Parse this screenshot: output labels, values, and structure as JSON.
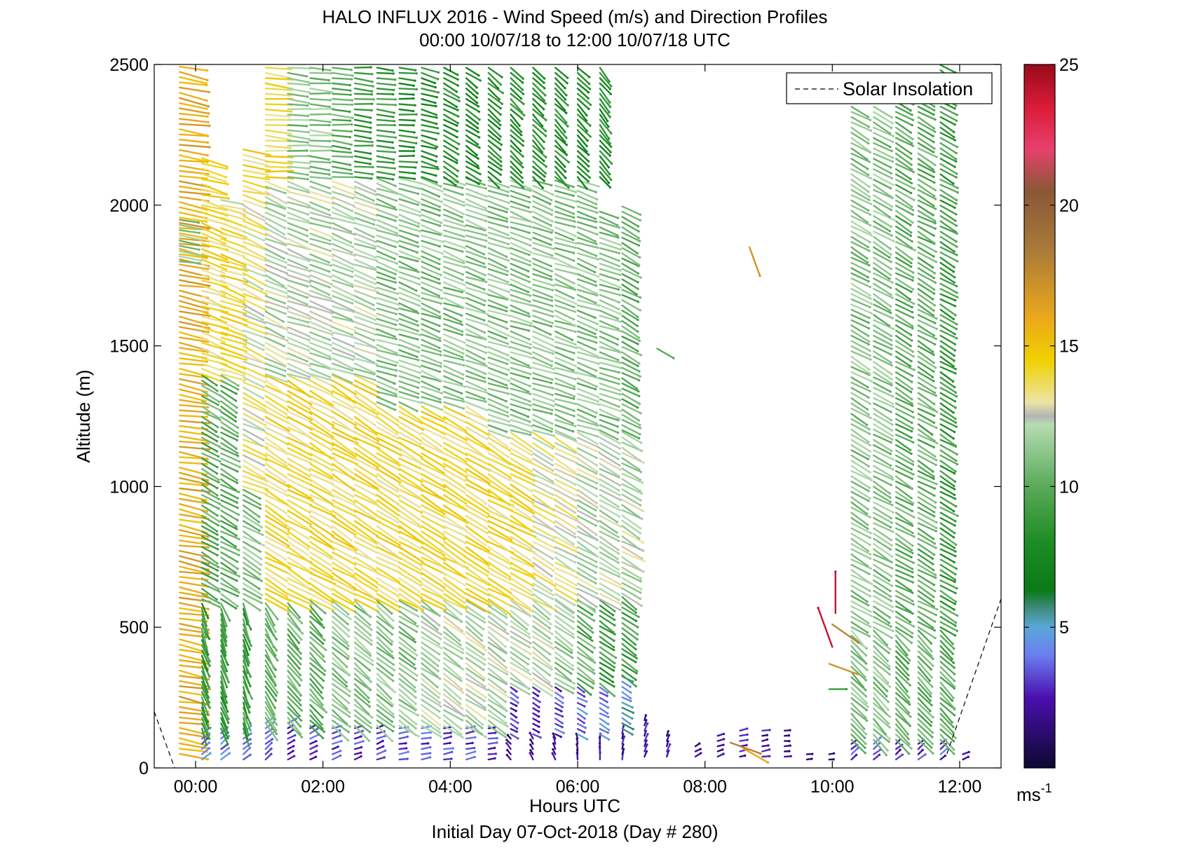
{
  "chart_data": {
    "type": "wind-vector-profile",
    "title": "HALO INFLUX 2016 - Wind Speed (m/s) and Direction Profiles",
    "subtitle": "00:00 10/07/18 to 12:00 10/07/18  UTC",
    "xlabel": "Hours UTC",
    "ylabel": "Altitude (m)",
    "footer": "Initial Day 07-Oct-2018 (Day # 280)",
    "x_unit": "hours",
    "xlim": [
      -0.65,
      12.65
    ],
    "ylim": [
      0,
      2500
    ],
    "x_ticks": [
      {
        "value": 0,
        "label": "00:00"
      },
      {
        "value": 2,
        "label": "02:00"
      },
      {
        "value": 4,
        "label": "04:00"
      },
      {
        "value": 6,
        "label": "06:00"
      },
      {
        "value": 8,
        "label": "08:00"
      },
      {
        "value": 10,
        "label": "10:00"
      },
      {
        "value": 12,
        "label": "12:00"
      }
    ],
    "y_ticks": [
      {
        "value": 0,
        "label": "0"
      },
      {
        "value": 500,
        "label": "500"
      },
      {
        "value": 1000,
        "label": "1000"
      },
      {
        "value": 1500,
        "label": "1500"
      },
      {
        "value": 2000,
        "label": "2000"
      },
      {
        "value": 2500,
        "label": "2500"
      }
    ],
    "legend": {
      "entries": [
        "Solar Insolation"
      ],
      "location": "top-right",
      "style": "dashed"
    },
    "colorbar": {
      "min": 0,
      "max": 25,
      "unit": "ms-1",
      "ticks": [
        {
          "value": 5,
          "label": "5"
        },
        {
          "value": 10,
          "label": "10"
        },
        {
          "value": 15,
          "label": "15"
        },
        {
          "value": 20,
          "label": "20"
        },
        {
          "value": 25,
          "label": "25"
        }
      ],
      "stops": [
        {
          "v": 0,
          "c": "#0d0830"
        },
        {
          "v": 2.5,
          "c": "#4b0fb0"
        },
        {
          "v": 4,
          "c": "#6a7ef0"
        },
        {
          "v": 5,
          "c": "#5aa8d8"
        },
        {
          "v": 5.7,
          "c": "#3d8a7a"
        },
        {
          "v": 6.3,
          "c": "#0a7a18"
        },
        {
          "v": 8,
          "c": "#1c8c22"
        },
        {
          "v": 10,
          "c": "#5aaa5a"
        },
        {
          "v": 12.2,
          "c": "#b6dcb2"
        },
        {
          "v": 12.5,
          "c": "#b4b4b4"
        },
        {
          "v": 13,
          "c": "#ece4a4"
        },
        {
          "v": 14.5,
          "c": "#f0d000"
        },
        {
          "v": 16,
          "c": "#eba81c"
        },
        {
          "v": 18.5,
          "c": "#a8783a"
        },
        {
          "v": 20.5,
          "c": "#8a5836"
        },
        {
          "v": 22,
          "c": "#e8406c"
        },
        {
          "v": 23.5,
          "c": "#d81c38"
        },
        {
          "v": 25,
          "c": "#9a0a1a"
        }
      ]
    },
    "solar_insolation": [
      {
        "x": [
          -0.65,
          -0.33
        ],
        "y": [
          200,
          0
        ]
      },
      {
        "x": [
          11.8,
          12.68
        ],
        "y": [
          50,
          620
        ]
      }
    ],
    "vector_scale": "arrow length proportional to speed",
    "profiles": [
      {
        "t": -0.25,
        "bands": [
          [
            50,
            2500,
            16,
            280
          ],
          [
            1800,
            1950,
            11,
            280
          ]
        ]
      },
      {
        "t": 0.1,
        "bands": [
          [
            30,
            140,
            4,
            230
          ],
          [
            140,
            600,
            9,
            340
          ],
          [
            600,
            1400,
            10,
            300
          ],
          [
            1400,
            2000,
            14,
            290
          ],
          [
            2000,
            2180,
            14,
            285
          ]
        ]
      },
      {
        "t": 0.4,
        "bands": [
          [
            30,
            140,
            4,
            230
          ],
          [
            140,
            600,
            9,
            340
          ],
          [
            600,
            1400,
            10,
            300
          ],
          [
            1400,
            2000,
            14,
            290
          ],
          [
            2000,
            2030,
            13,
            285
          ]
        ]
      },
      {
        "t": 0.75,
        "bands": [
          [
            30,
            140,
            4,
            230
          ],
          [
            140,
            600,
            9,
            340
          ],
          [
            600,
            1000,
            11,
            300
          ],
          [
            1000,
            2050,
            13,
            295
          ],
          [
            2050,
            2200,
            14,
            285
          ]
        ]
      },
      {
        "t": 1.1,
        "bands": [
          [
            30,
            160,
            4,
            230
          ],
          [
            160,
            600,
            10,
            330
          ],
          [
            600,
            1400,
            14,
            300
          ],
          [
            1400,
            2100,
            12,
            295
          ],
          [
            2100,
            2500,
            14,
            275
          ]
        ]
      },
      {
        "t": 1.45,
        "bands": [
          [
            30,
            160,
            3,
            240
          ],
          [
            160,
            600,
            10,
            320
          ],
          [
            600,
            1400,
            14,
            300
          ],
          [
            1400,
            2100,
            12,
            290
          ],
          [
            2100,
            2500,
            11,
            275
          ]
        ]
      },
      {
        "t": 1.8,
        "bands": [
          [
            30,
            150,
            3,
            240
          ],
          [
            150,
            600,
            10,
            315
          ],
          [
            600,
            1400,
            14,
            300
          ],
          [
            1400,
            2100,
            12,
            290
          ],
          [
            2100,
            2500,
            11,
            275
          ]
        ]
      },
      {
        "t": 2.15,
        "bands": [
          [
            30,
            150,
            3,
            250
          ],
          [
            150,
            600,
            11,
            310
          ],
          [
            600,
            1400,
            14,
            300
          ],
          [
            1400,
            2100,
            12,
            290
          ],
          [
            2100,
            2500,
            10,
            275
          ]
        ]
      },
      {
        "t": 2.5,
        "bands": [
          [
            30,
            150,
            3,
            250
          ],
          [
            150,
            600,
            11,
            310
          ],
          [
            600,
            1400,
            14,
            300
          ],
          [
            1400,
            2100,
            12,
            290
          ],
          [
            2100,
            2500,
            9,
            275
          ]
        ]
      },
      {
        "t": 2.85,
        "bands": [
          [
            30,
            150,
            3,
            250
          ],
          [
            150,
            600,
            11,
            310
          ],
          [
            600,
            1300,
            14,
            300
          ],
          [
            1300,
            2100,
            11,
            290
          ],
          [
            2100,
            2500,
            9,
            275
          ]
        ]
      },
      {
        "t": 3.2,
        "bands": [
          [
            30,
            150,
            3,
            260
          ],
          [
            150,
            600,
            11,
            305
          ],
          [
            600,
            1300,
            14,
            300
          ],
          [
            1300,
            2100,
            11,
            290
          ],
          [
            2100,
            2500,
            8,
            275
          ]
        ]
      },
      {
        "t": 3.55,
        "bands": [
          [
            30,
            150,
            3,
            260
          ],
          [
            150,
            600,
            12,
            305
          ],
          [
            600,
            1300,
            14,
            300
          ],
          [
            1300,
            2100,
            11,
            290
          ],
          [
            2100,
            2500,
            8,
            285
          ]
        ]
      },
      {
        "t": 3.9,
        "bands": [
          [
            30,
            150,
            3,
            260
          ],
          [
            150,
            600,
            12,
            305
          ],
          [
            600,
            1300,
            14,
            300
          ],
          [
            1300,
            2100,
            11,
            290
          ],
          [
            2100,
            2500,
            8,
            300
          ]
        ]
      },
      {
        "t": 4.25,
        "bands": [
          [
            30,
            150,
            3,
            260
          ],
          [
            150,
            600,
            12,
            305
          ],
          [
            600,
            1300,
            14,
            300
          ],
          [
            1300,
            2100,
            11,
            290
          ],
          [
            2100,
            2500,
            8,
            305
          ]
        ]
      },
      {
        "t": 4.6,
        "bands": [
          [
            30,
            150,
            3,
            260
          ],
          [
            150,
            600,
            12,
            305
          ],
          [
            600,
            1200,
            14,
            300
          ],
          [
            1200,
            2100,
            11,
            290
          ],
          [
            2100,
            2500,
            8,
            310
          ]
        ]
      },
      {
        "t": 4.95,
        "bands": [
          [
            30,
            120,
            2,
            140
          ],
          [
            120,
            300,
            3,
            300
          ],
          [
            300,
            600,
            12,
            305
          ],
          [
            600,
            1200,
            14,
            300
          ],
          [
            1200,
            2100,
            11,
            290
          ],
          [
            2100,
            2500,
            8,
            315
          ]
        ]
      },
      {
        "t": 5.3,
        "bands": [
          [
            30,
            120,
            2,
            150
          ],
          [
            120,
            300,
            3,
            300
          ],
          [
            300,
            600,
            12,
            305
          ],
          [
            600,
            1200,
            13,
            300
          ],
          [
            1200,
            2100,
            11,
            290
          ],
          [
            2100,
            2500,
            8,
            315
          ]
        ]
      },
      {
        "t": 5.65,
        "bands": [
          [
            30,
            120,
            2,
            160
          ],
          [
            120,
            300,
            3,
            300
          ],
          [
            300,
            600,
            11,
            305
          ],
          [
            600,
            1200,
            13,
            300
          ],
          [
            1200,
            2100,
            11,
            290
          ],
          [
            2100,
            2500,
            8,
            315
          ]
        ]
      },
      {
        "t": 6.0,
        "bands": [
          [
            30,
            120,
            2,
            170
          ],
          [
            120,
            300,
            4,
            300
          ],
          [
            300,
            600,
            10,
            305
          ],
          [
            600,
            1200,
            12,
            300
          ],
          [
            1200,
            2100,
            11,
            290
          ],
          [
            2100,
            2500,
            8,
            315
          ]
        ]
      },
      {
        "t": 6.35,
        "bands": [
          [
            30,
            120,
            2,
            180
          ],
          [
            120,
            300,
            4,
            300
          ],
          [
            300,
            600,
            9,
            305
          ],
          [
            600,
            1200,
            12,
            300
          ],
          [
            1200,
            1990,
            11,
            290
          ],
          [
            2100,
            2500,
            8,
            320
          ]
        ]
      },
      {
        "t": 6.7,
        "bands": [
          [
            30,
            140,
            2,
            190
          ],
          [
            140,
            330,
            5,
            300
          ],
          [
            330,
            620,
            9,
            305
          ],
          [
            620,
            1200,
            12,
            300
          ],
          [
            1200,
            2000,
            10,
            300
          ]
        ]
      },
      {
        "t": 7.05,
        "bands": [
          [
            40,
            180,
            2,
            200
          ]
        ]
      },
      {
        "t": 7.4,
        "bands": [
          [
            40,
            130,
            2,
            200
          ]
        ]
      },
      {
        "t": 7.85,
        "bands": [
          [
            40,
            90,
            2,
            240
          ]
        ]
      },
      {
        "t": 8.2,
        "bands": [
          [
            40,
            130,
            2,
            250
          ]
        ]
      },
      {
        "t": 8.55,
        "bands": [
          [
            40,
            150,
            2,
            255
          ]
        ]
      },
      {
        "t": 8.9,
        "bands": [
          [
            40,
            140,
            2,
            260
          ]
        ]
      },
      {
        "t": 9.25,
        "bands": [
          [
            40,
            140,
            2,
            265
          ]
        ]
      },
      {
        "t": 9.6,
        "bands": [
          [
            30,
            60,
            2,
            265
          ]
        ]
      },
      {
        "t": 9.95,
        "bands": [
          [
            30,
            60,
            2,
            265
          ]
        ]
      },
      {
        "t": 10.3,
        "bands": [
          [
            30,
            100,
            3,
            230
          ],
          [
            100,
            500,
            11,
            315
          ],
          [
            500,
            2360,
            11,
            300
          ]
        ]
      },
      {
        "t": 10.65,
        "bands": [
          [
            30,
            100,
            3,
            230
          ],
          [
            100,
            500,
            11,
            315
          ],
          [
            500,
            2360,
            11,
            300
          ]
        ]
      },
      {
        "t": 11.0,
        "bands": [
          [
            30,
            100,
            3,
            230
          ],
          [
            100,
            500,
            10,
            315
          ],
          [
            500,
            2400,
            10,
            300
          ]
        ]
      },
      {
        "t": 11.35,
        "bands": [
          [
            30,
            100,
            3,
            230
          ],
          [
            100,
            500,
            10,
            315
          ],
          [
            500,
            2450,
            10,
            300
          ]
        ]
      },
      {
        "t": 11.7,
        "bands": [
          [
            30,
            100,
            3,
            230
          ],
          [
            100,
            500,
            10,
            315
          ],
          [
            500,
            2500,
            9,
            300
          ]
        ]
      },
      {
        "t": 12.05,
        "bands": [
          [
            30,
            60,
            3,
            250
          ]
        ]
      }
    ],
    "isolated": [
      {
        "t": 7.25,
        "alt": 1490,
        "speed": 10,
        "dir": 300
      },
      {
        "t": 8.7,
        "alt": 1850,
        "speed": 17,
        "dir": 340
      },
      {
        "t": 10.0,
        "alt": 510,
        "speed": 18,
        "dir": 305
      },
      {
        "t": 10.05,
        "alt": 550,
        "speed": 24,
        "dir": 180
      },
      {
        "t": 9.95,
        "alt": 370,
        "speed": 17,
        "dir": 290
      },
      {
        "t": 10.0,
        "alt": 430,
        "speed": 24,
        "dir": 160
      },
      {
        "t": 9.95,
        "alt": 280,
        "speed": 9,
        "dir": 270
      },
      {
        "t": 8.6,
        "alt": 70,
        "speed": 16,
        "dir": 300
      },
      {
        "t": 8.4,
        "alt": 90,
        "speed": 18,
        "dir": 290
      }
    ]
  }
}
